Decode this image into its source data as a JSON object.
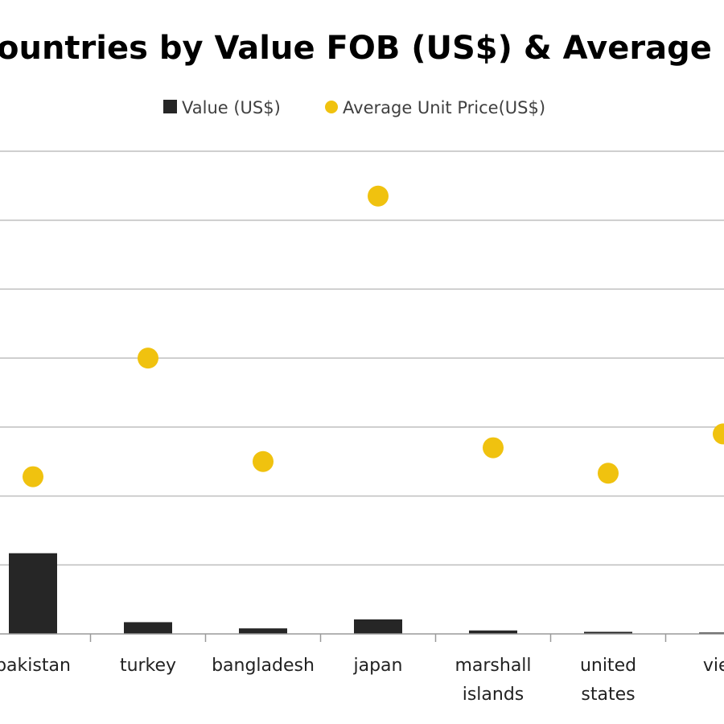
{
  "chart_data": {
    "type": "bar",
    "title": "ountries by Value FOB (US$) & Average Per U",
    "categories": [
      [
        "pakistan"
      ],
      [
        "turkey"
      ],
      [
        "bangladesh"
      ],
      [
        "japan"
      ],
      [
        "marshall",
        "islands"
      ],
      [
        "united",
        "states"
      ],
      [
        "vietr"
      ]
    ],
    "yrange": [
      0,
      7
    ],
    "grid": true,
    "legend_position": "top",
    "series": [
      {
        "name": "Value (US$)",
        "type": "bar",
        "color": "#262626",
        "values": [
          1.17,
          0.17,
          0.08,
          0.21,
          0.05,
          0.03,
          0.02
        ]
      },
      {
        "name": "Average Unit Price(US$)",
        "type": "scatter",
        "color": "#F0C20F",
        "values": [
          2.28,
          4.0,
          2.5,
          6.35,
          2.7,
          2.33,
          2.9
        ]
      }
    ]
  }
}
